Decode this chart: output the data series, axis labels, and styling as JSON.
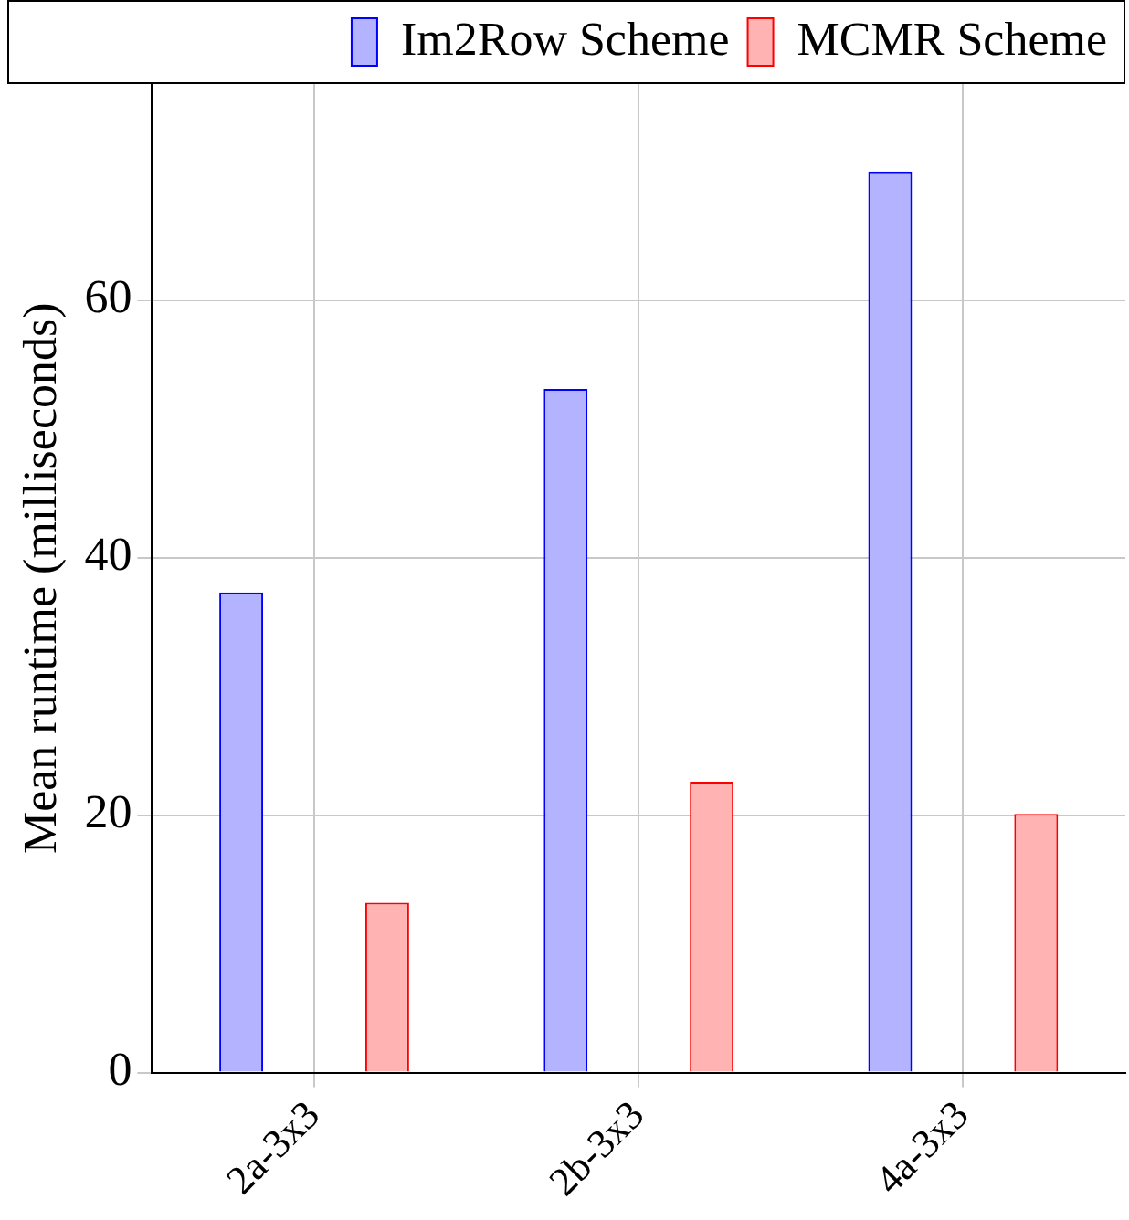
{
  "chart_data": {
    "type": "bar",
    "ylabel": "Mean runtime (milliseconds)",
    "categories": [
      "2a-3x3",
      "2b-3x3",
      "4a-3x3"
    ],
    "series": [
      {
        "name": "Im2Row Scheme",
        "color": "#b3b3ff",
        "values": [
          37.3,
          53.1,
          70
        ]
      },
      {
        "name": "MCMR Scheme",
        "color": "#ffb3b3",
        "values": [
          13.2,
          22.6,
          20.1
        ]
      }
    ],
    "ylim": [
      0,
      76.8
    ],
    "yticks": [
      0,
      20,
      40,
      60
    ],
    "grid": true,
    "legend": "top right"
  }
}
